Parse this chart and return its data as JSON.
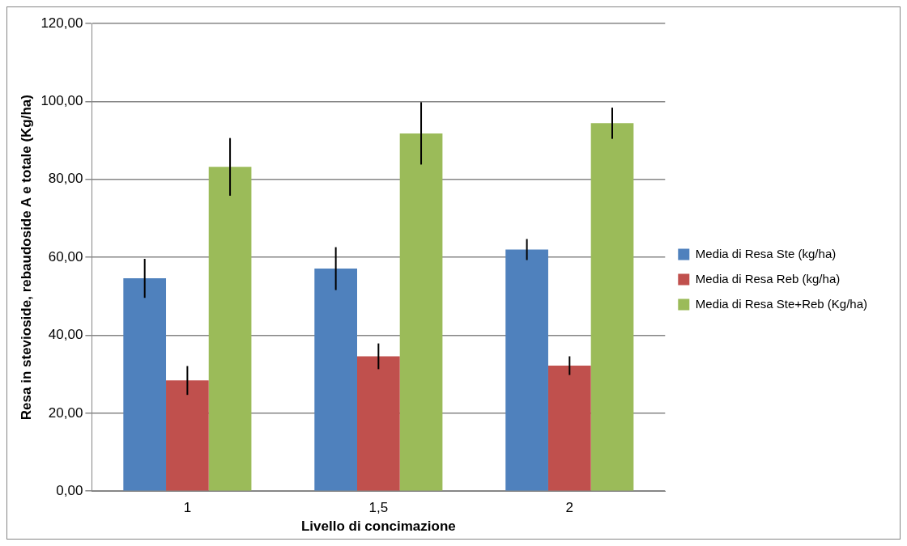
{
  "chart_data": {
    "type": "bar",
    "xlabel": "Livello di concimazione",
    "ylabel": "Resa in stevioside, rebaudoside A e totale (Kg/ha)",
    "categories": [
      "1",
      "1,5",
      "2"
    ],
    "series": [
      {
        "name": "Media di Resa Ste (kg/ha)",
        "color": "#4f81bd",
        "values": [
          54.6,
          57.1,
          62.0
        ],
        "errors": [
          5.0,
          5.5,
          2.7
        ]
      },
      {
        "name": "Media di Resa Reb (kg/ha)",
        "color": "#c0504d",
        "values": [
          28.4,
          34.6,
          32.2
        ],
        "errors": [
          3.7,
          3.3,
          2.4
        ]
      },
      {
        "name": "Media di Resa Ste+Reb (Kg/ha)",
        "color": "#9bbb59",
        "values": [
          83.2,
          91.8,
          94.4
        ],
        "errors": [
          7.4,
          8.0,
          4.0
        ]
      }
    ],
    "ylim": [
      0,
      120
    ],
    "yticks": [
      {
        "value": 0,
        "label": "0,00"
      },
      {
        "value": 20,
        "label": "20,00"
      },
      {
        "value": 40,
        "label": "40,00"
      },
      {
        "value": 60,
        "label": "60,00"
      },
      {
        "value": 80,
        "label": "80,00"
      },
      {
        "value": 100,
        "label": "100,00"
      },
      {
        "value": 120,
        "label": "120,00"
      }
    ],
    "grid": "y",
    "legend": "right"
  }
}
